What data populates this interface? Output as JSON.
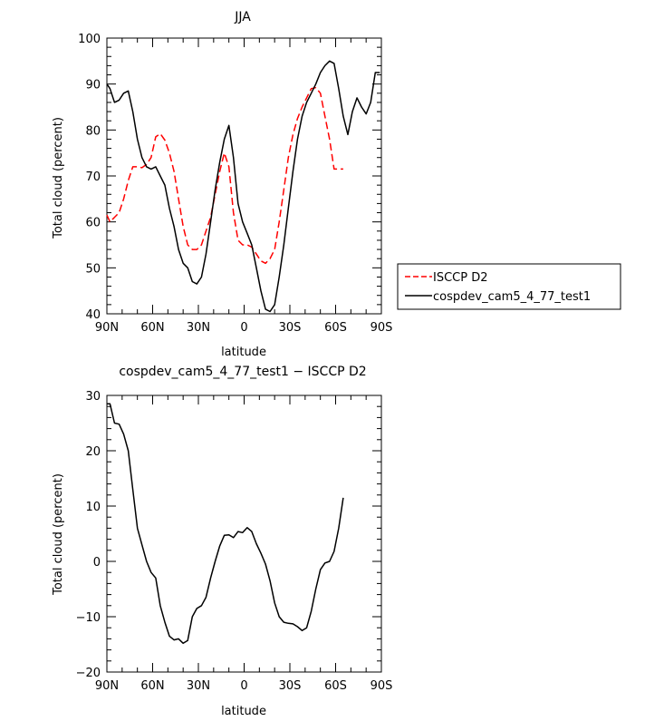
{
  "chart_data": [
    {
      "type": "line",
      "title": "JJA",
      "xlabel": "latitude",
      "ylabel": "Total cloud (percent)",
      "xlim": [
        -90,
        90
      ],
      "ylim": [
        40,
        100
      ],
      "x_ticks": [
        -90,
        -60,
        -30,
        0,
        30,
        60,
        90
      ],
      "x_tick_labels": [
        "90N",
        "60N",
        "30N",
        "0",
        "30S",
        "60S",
        "90S"
      ],
      "y_ticks": [
        40,
        50,
        60,
        70,
        80,
        90,
        100
      ],
      "y_tick_labels": [
        "40",
        "50",
        "60",
        "70",
        "80",
        "90",
        "100"
      ],
      "legend_position": "right",
      "series": [
        {
          "name": "ISCCP D2",
          "color": "#ff0000",
          "dash": "dashed",
          "x": [
            -90,
            -88,
            -85,
            -82,
            -79,
            -76,
            -73,
            -70,
            -67,
            -64,
            -61,
            -58,
            -55,
            -52,
            -49,
            -46,
            -43,
            -40,
            -37,
            -34,
            -31,
            -28,
            -25,
            -22,
            -19,
            -16,
            -13,
            -10,
            -7,
            -4,
            -1,
            2,
            5,
            8,
            11,
            14,
            17,
            20,
            23,
            26,
            29,
            32,
            35,
            38,
            41,
            44,
            47,
            50,
            53,
            56,
            59,
            62,
            65
          ],
          "y": [
            61.5,
            60,
            61,
            62,
            65,
            69,
            72,
            72,
            71.8,
            72.5,
            74,
            78.5,
            79.2,
            77.8,
            75,
            71,
            65,
            59,
            55,
            54,
            54,
            55,
            58,
            61,
            66,
            71,
            75,
            72,
            62,
            56,
            55,
            55,
            54.5,
            53,
            51.5,
            51,
            52,
            54,
            60,
            67,
            74,
            79,
            82.5,
            85,
            87,
            89,
            89.2,
            88,
            83,
            78,
            71.5,
            71.5,
            71.5
          ]
        },
        {
          "name": "cospdev_cam5_4_77_test1",
          "color": "#000000",
          "dash": "solid",
          "x": [
            -90,
            -88,
            -85,
            -82,
            -79,
            -76,
            -73,
            -70,
            -67,
            -64,
            -61,
            -58,
            -55,
            -52,
            -49,
            -46,
            -43,
            -40,
            -37,
            -34,
            -31,
            -28,
            -25,
            -22,
            -19,
            -16,
            -13,
            -10,
            -7,
            -4,
            -1,
            2,
            5,
            8,
            11,
            14,
            17,
            20,
            23,
            26,
            29,
            32,
            35,
            38,
            41,
            44,
            47,
            50,
            53,
            56,
            59,
            62,
            65,
            68,
            71,
            74,
            77,
            80,
            83,
            86,
            89
          ],
          "y": [
            90,
            89,
            86,
            86.5,
            88,
            88.5,
            84,
            78,
            74,
            72,
            71.5,
            72,
            70,
            68,
            63,
            59,
            54,
            51,
            50,
            47,
            46.5,
            48,
            53,
            60,
            67,
            73,
            78,
            81,
            74,
            64,
            60,
            57.5,
            55,
            50,
            45,
            41,
            40.5,
            42,
            48,
            55,
            63,
            71,
            78,
            83,
            86,
            88,
            90,
            92.5,
            94,
            95,
            94.5,
            89,
            83,
            79,
            84,
            87,
            85,
            83.5,
            86,
            92.5,
            92.5
          ]
        }
      ]
    },
    {
      "type": "line",
      "title": "cospdev_cam5_4_77_test1 − ISCCP D2",
      "xlabel": "latitude",
      "ylabel": "Total cloud (percent)",
      "xlim": [
        -90,
        90
      ],
      "ylim": [
        -20,
        30
      ],
      "x_ticks": [
        -90,
        -60,
        -30,
        0,
        30,
        60,
        90
      ],
      "x_tick_labels": [
        "90N",
        "60N",
        "30N",
        "0",
        "30S",
        "60S",
        "90S"
      ],
      "y_ticks": [
        -20,
        -10,
        0,
        10,
        20,
        30
      ],
      "y_tick_labels": [
        "−20",
        "−10",
        "0",
        "10",
        "20",
        "30"
      ],
      "series": [
        {
          "name": "",
          "color": "#000000",
          "dash": "solid",
          "x": [
            -90,
            -88,
            -85,
            -82,
            -79,
            -76,
            -73,
            -70,
            -67,
            -64,
            -61,
            -58,
            -55,
            -52,
            -49,
            -46,
            -43,
            -40,
            -37,
            -34,
            -31,
            -28,
            -25,
            -22,
            -19,
            -16,
            -13,
            -10,
            -7,
            -4,
            -1,
            2,
            5,
            8,
            11,
            14,
            17,
            20,
            23,
            26,
            29,
            32,
            35,
            38,
            41,
            44,
            47,
            50,
            53,
            56,
            59,
            62,
            65
          ],
          "y": [
            28.5,
            28.5,
            25,
            24.8,
            23,
            20,
            13,
            6,
            3,
            0,
            -2,
            -3,
            -8,
            -11,
            -13.5,
            -14.2,
            -14,
            -14.8,
            -14.3,
            -10,
            -8.5,
            -8,
            -6.5,
            -3,
            0,
            2.8,
            4.7,
            4.8,
            4.3,
            5.4,
            5.2,
            6.1,
            5.4,
            3.2,
            1.5,
            -0.5,
            -3.5,
            -7.5,
            -10,
            -11,
            -11.2,
            -11.3,
            -11.8,
            -12.5,
            -12,
            -9,
            -5,
            -1.5,
            -0.3,
            0,
            1.8,
            6,
            11.5
          ]
        }
      ]
    }
  ]
}
